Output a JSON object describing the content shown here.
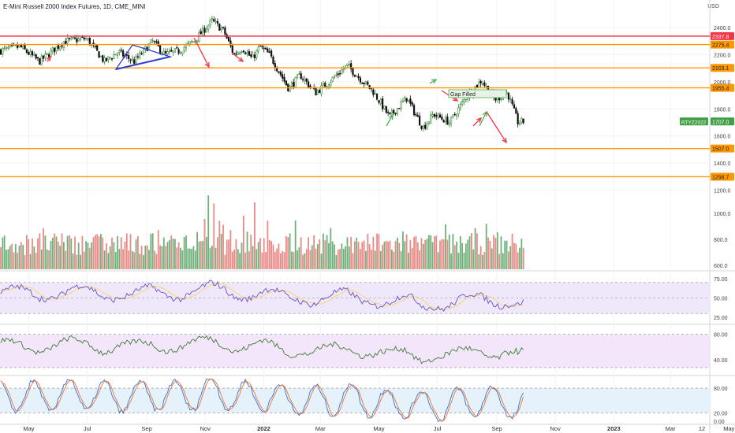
{
  "header": {
    "title": "E-Mini Russell 2000 Index Futures, 1D, CME_MINI",
    "currency": "USD"
  },
  "colors": {
    "up": "#3c8a3c",
    "down": "#111111",
    "vol_up": "#6fb07a",
    "vol_down": "#e88a86",
    "support": "#ff9800",
    "resistance": "#f23645",
    "price_tag": "#42a047",
    "osc1_band": "#efe8fa",
    "osc2_band": "#f3e6fb",
    "osc3_band": "#e5f2fb"
  },
  "chart_data": {
    "type": "candlestick",
    "symbol": "RTYZ2022",
    "last_price": 1707.0,
    "last_price_label": "1707.0",
    "x_tick_labels": [
      "May",
      "Jul",
      "Sep",
      "Nov",
      "2022",
      "Mar",
      "May",
      "Jul",
      "Sep",
      "Nov",
      "2023",
      "Mar",
      "May",
      "12"
    ],
    "price_axis": {
      "ticks": [
        "2400.0",
        "2200.0",
        "2000.0",
        "1800.0",
        "1600.0",
        "1400.0",
        "1200.0"
      ],
      "ylim": [
        1150,
        2500
      ],
      "scale": "linear"
    },
    "volume_axis": {
      "ticks": [
        "1000.0",
        "800.0",
        "600.0"
      ]
    },
    "price_path": [
      {
        "date": "2021-04-01",
        "close": 2230
      },
      {
        "date": "2021-04-22",
        "close": 2260
      },
      {
        "date": "2021-05-12",
        "close": 2150
      },
      {
        "date": "2021-06-07",
        "close": 2300
      },
      {
        "date": "2021-06-30",
        "close": 2320
      },
      {
        "date": "2021-07-19",
        "close": 2150
      },
      {
        "date": "2021-08-02",
        "close": 2220
      },
      {
        "date": "2021-08-19",
        "close": 2150
      },
      {
        "date": "2021-09-07",
        "close": 2300
      },
      {
        "date": "2021-09-20",
        "close": 2200
      },
      {
        "date": "2021-10-05",
        "close": 2230
      },
      {
        "date": "2021-10-20",
        "close": 2300
      },
      {
        "date": "2021-11-08",
        "close": 2450
      },
      {
        "date": "2021-11-20",
        "close": 2380
      },
      {
        "date": "2021-12-01",
        "close": 2200
      },
      {
        "date": "2021-12-10",
        "close": 2250
      },
      {
        "date": "2021-12-20",
        "close": 2170
      },
      {
        "date": "2021-12-28",
        "close": 2260
      },
      {
        "date": "2022-01-07",
        "close": 2200
      },
      {
        "date": "2022-01-27",
        "close": 1950
      },
      {
        "date": "2022-02-08",
        "close": 2050
      },
      {
        "date": "2022-02-24",
        "close": 1920
      },
      {
        "date": "2022-03-10",
        "close": 2000
      },
      {
        "date": "2022-03-29",
        "close": 2120
      },
      {
        "date": "2022-04-12",
        "close": 2020
      },
      {
        "date": "2022-04-25",
        "close": 1930
      },
      {
        "date": "2022-05-12",
        "close": 1740
      },
      {
        "date": "2022-05-30",
        "close": 1880
      },
      {
        "date": "2022-06-16",
        "close": 1660
      },
      {
        "date": "2022-06-27",
        "close": 1760
      },
      {
        "date": "2022-07-14",
        "close": 1700
      },
      {
        "date": "2022-08-01",
        "close": 1900
      },
      {
        "date": "2022-08-16",
        "close": 2010
      },
      {
        "date": "2022-08-30",
        "close": 1870
      },
      {
        "date": "2022-09-12",
        "close": 1920
      },
      {
        "date": "2022-09-23",
        "close": 1700
      },
      {
        "date": "2022-09-30",
        "close": 1707
      }
    ],
    "horizontal_levels": [
      {
        "label": "2337.8",
        "value": 2337.8,
        "kind": "resistance"
      },
      {
        "label": "2275.4",
        "value": 2275.4,
        "kind": "support"
      },
      {
        "label": "2103.1",
        "value": 2103.1,
        "kind": "support"
      },
      {
        "label": "1955.4",
        "value": 1955.4,
        "kind": "support"
      },
      {
        "label": "1507.0",
        "value": 1507.0,
        "kind": "support"
      },
      {
        "label": "1298.7",
        "value": 1298.7,
        "kind": "support"
      }
    ],
    "annotations": [
      {
        "text": "Gap Filled"
      }
    ],
    "oscillators": [
      {
        "ticks": [
          "75.00",
          "50.00",
          "25.00"
        ],
        "ylim": [
          18,
          82
        ],
        "band": [
          30,
          70
        ],
        "midline": 50
      },
      {
        "ticks": [
          "80.00",
          "40.00"
        ],
        "ylim": [
          18,
          92
        ],
        "band": [
          28,
          80
        ]
      },
      {
        "ticks": [
          "80.00",
          "20.00",
          "0.00"
        ],
        "ylim": [
          -4,
          105
        ],
        "band": [
          20,
          80
        ]
      }
    ]
  }
}
